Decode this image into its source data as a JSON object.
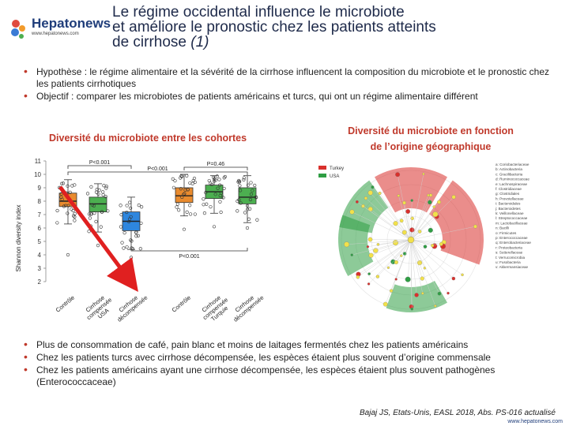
{
  "logo": {
    "name": "Hepatonews",
    "url": "www.hepatonews.com"
  },
  "title": {
    "line1": "Le régime occidental influence le microbiote",
    "line2": "et améliore le pronostic chez les patients atteints",
    "line3a": "de cirrhose ",
    "line3b": "(1)"
  },
  "bullets_top": [
    "Hypothèse : le régime alimentaire et la sévérité de la cirrhose influencent la composition du microbiote et le pronostic chez les patients cirrhotiques",
    "Objectif : comparer les microbiotes de patients américains et turcs, qui ont un régime alimentaire différent"
  ],
  "subtitles": {
    "left": "Diversité du microbiote entre les cohortes",
    "right_line1": "Diversité du microbiote en fonction",
    "right_line2": "de l’origine géographique"
  },
  "chart_data": {
    "type": "box",
    "ylabel": "Shannon diversity index",
    "ylim": [
      2,
      11
    ],
    "yticks": [
      2,
      3,
      4,
      5,
      6,
      7,
      8,
      9,
      10,
      11
    ],
    "categories": [
      "Contrôle",
      "Cirrhose compensée USA",
      "Cirrhose décompensée",
      "Contrôle",
      "Cirrhose compensée Turquie",
      "Cirrhose décompensée"
    ],
    "category_lines": [
      [
        "Contrôle"
      ],
      [
        "Cirrhose",
        "compensée",
        "USA"
      ],
      [
        "Cirrhose",
        "décompensée"
      ],
      [
        "Contrôle"
      ],
      [
        "Cirrhose",
        "compensée",
        "Turquie"
      ],
      [
        "Cirrhose",
        "décompensée"
      ]
    ],
    "colors": [
      "#e98b2e",
      "#4caf50",
      "#2e86de",
      "#e98b2e",
      "#4caf50",
      "#4caf50"
    ],
    "boxes": [
      {
        "whisker_low": 6.3,
        "q1": 7.6,
        "median": 8.0,
        "q3": 8.6,
        "whisker_high": 9.6
      },
      {
        "whisker_low": 5.7,
        "q1": 7.2,
        "median": 7.8,
        "q3": 8.3,
        "whisker_high": 9.3
      },
      {
        "whisker_low": 4.4,
        "q1": 5.8,
        "median": 6.5,
        "q3": 7.2,
        "whisker_high": 8.3
      },
      {
        "whisker_low": 6.9,
        "q1": 7.9,
        "median": 8.4,
        "q3": 9.0,
        "whisker_high": 10.0
      },
      {
        "whisker_low": 7.1,
        "q1": 8.2,
        "median": 8.7,
        "q3": 9.2,
        "whisker_high": 9.9
      },
      {
        "whisker_low": 6.4,
        "q1": 7.8,
        "median": 8.3,
        "q3": 9.0,
        "whisker_high": 9.9
      }
    ],
    "outliers": [
      [
        4.0
      ],
      [
        4.7
      ],
      [
        3.8
      ],
      [
        5.9
      ],
      [
        6.1
      ],
      [
        6.0
      ]
    ],
    "annotations": {
      "p1": "P<0.001",
      "p2": "P<0.001",
      "p3": "P=0.46",
      "p4": "P<0.001"
    }
  },
  "cladogram": {
    "legend": [
      "Turkey",
      "USA"
    ],
    "legend_colors": [
      "#d9302c",
      "#2f9e44"
    ],
    "taxa_list": [
      "a: Coriobacteriaceae",
      "b: Actinobacteria",
      "c: Gracilibacteria",
      "d: Ruminococcaceae",
      "e: Lachnospiraceae",
      "f: Clostridiaceae",
      "g: Clostridiales",
      "h: Prevotellaceae",
      "i: Bacteroidales",
      "j: Bacteroidetes",
      "k: Veillonellaceae",
      "l: Streptococcaceae",
      "m: Lactobacillaceae",
      "n: Bacilli",
      "o: Firmicutes",
      "p: Enterococcaceae",
      "q: Enterobacteriaceae",
      "r: Proteobacteria",
      "s: Sutterellaceae",
      "t: Verrucomicrobia",
      "u: Fusobacteria",
      "v: Akkermansiaceae"
    ]
  },
  "bullets_bottom": [
    "Plus de consommation de café, pain blanc et moins de laitages fermentés chez les patients américains",
    "Chez les patients turcs avec cirrhose décompensée, les espèces étaient plus souvent d’origine commensale",
    "Chez les patients américains ayant une cirrhose décompensée, les espèces étaient plus souvent pathogènes (Enterococcaceae)"
  ],
  "reference": "Bajaj JS, Etats-Unis, EASL 2018, Abs. PS-016 actualisé",
  "footer_url": "www.hepatonews.com"
}
